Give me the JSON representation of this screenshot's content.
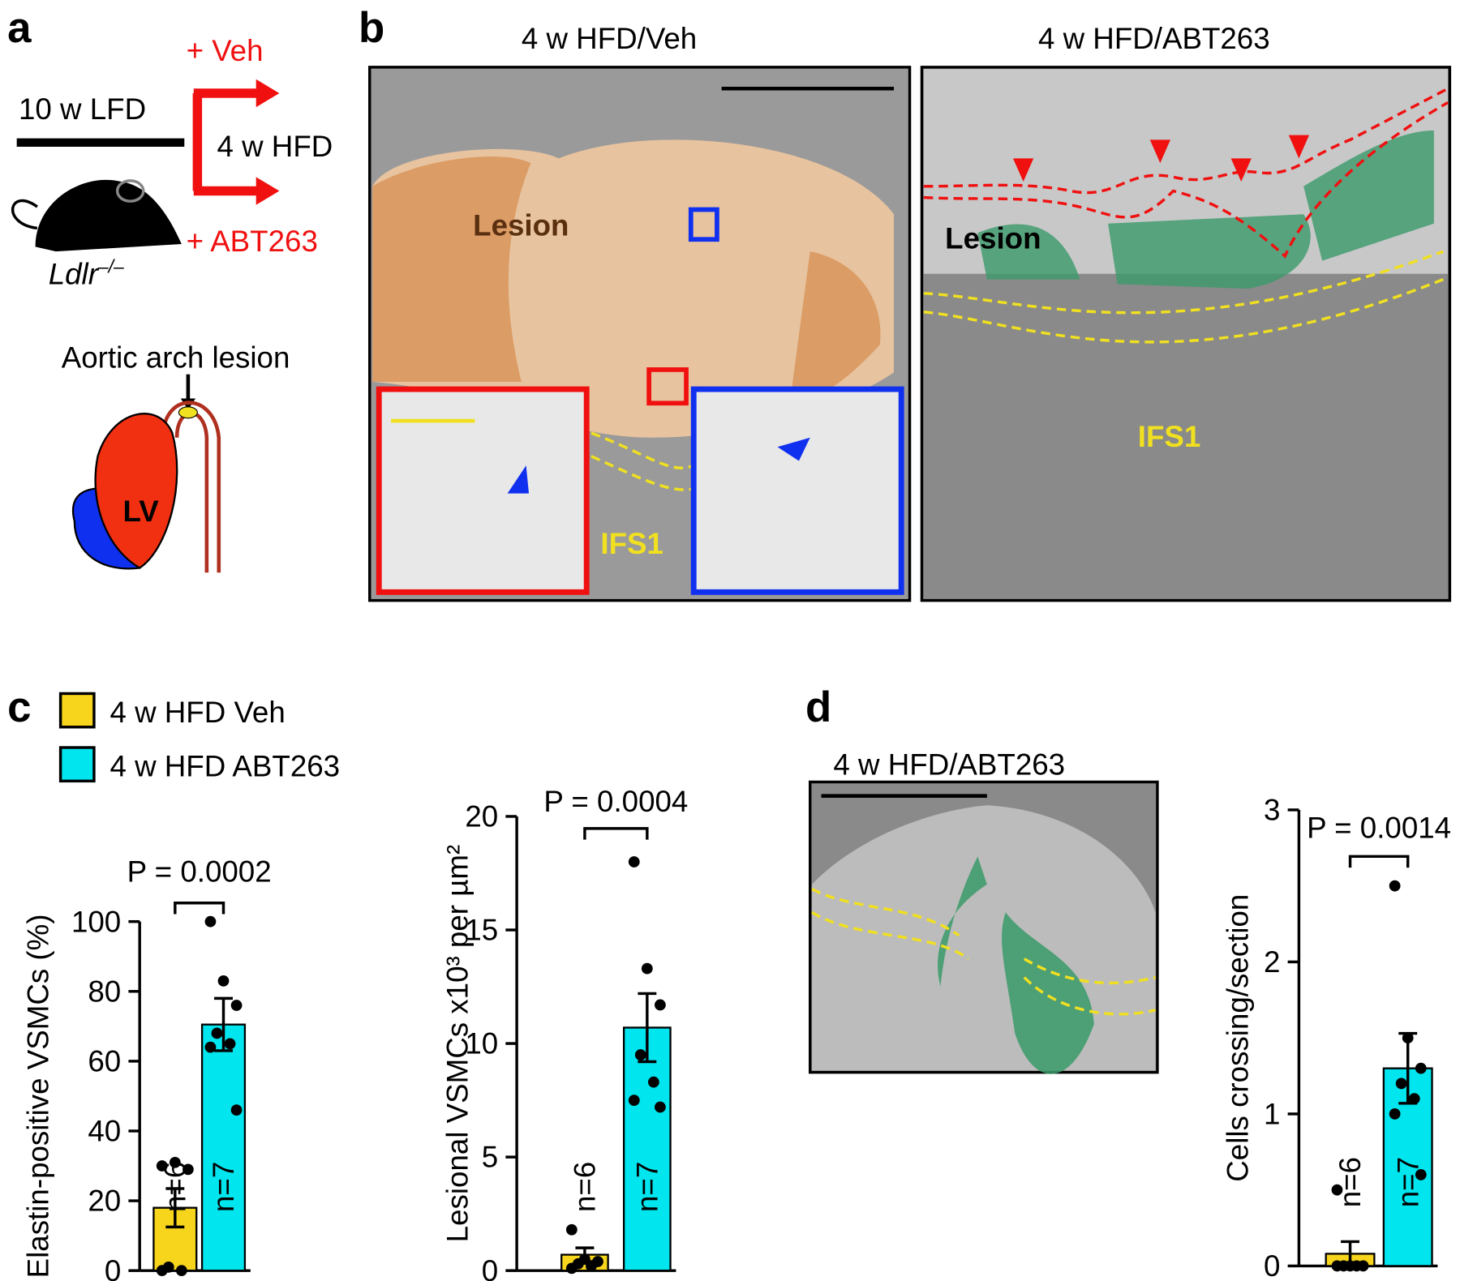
{
  "panel_labels": [
    "a",
    "b",
    "c",
    "d"
  ],
  "panel_a": {
    "veh": "+ Veh",
    "lfd": "10 w LFD",
    "hfd": "4 w HFD",
    "abt": "+ ABT263",
    "genotype": "Ldlr",
    "genotype_sup": "–/–",
    "lesion_site": "Aortic arch lesion",
    "heart": "LV"
  },
  "panel_b": {
    "left_title": "4 w HFD/Veh",
    "right_title": "4 w HFD/ABT263",
    "left_lesion": "Lesion",
    "right_lesion": "Lesion",
    "left_ifs": "IFS1",
    "right_ifs": "IFS1"
  },
  "panel_d": {
    "title": "4 w HFD/ABT263"
  },
  "legend": [
    {
      "name": "4 w HFD Veh",
      "color": "#f7d51d"
    },
    {
      "name": "4 w HFD ABT263",
      "color": "#00e5ee"
    }
  ],
  "chart_data": [
    {
      "type": "bar",
      "ylabel": "Elastin-positive VSMCs (%)",
      "ylim": [
        0,
        100
      ],
      "yticks": [
        0,
        20,
        40,
        60,
        80,
        100
      ],
      "values": [
        18,
        70.5
      ],
      "errors": [
        5.5,
        7.5
      ],
      "colors": [
        "#f7d51d",
        "#00e5ee"
      ],
      "points": [
        [
          30,
          31,
          29,
          1,
          0,
          0
        ],
        [
          100,
          83,
          76,
          68,
          65,
          64,
          46
        ]
      ],
      "n_labels": [
        "n=6",
        "n=7"
      ],
      "annotation": "P = 0.0002"
    },
    {
      "type": "bar",
      "ylabel": "Lesional VSMCs x10³ per µm²",
      "ylim": [
        0,
        20
      ],
      "yticks": [
        0,
        5,
        10,
        15,
        20
      ],
      "values": [
        0.7,
        10.7
      ],
      "errors": [
        0.3,
        1.5
      ],
      "colors": [
        "#f7d51d",
        "#00e5ee"
      ],
      "points": [
        [
          1.8,
          0.5,
          0.4,
          0.3,
          0.2,
          0.1
        ],
        [
          18,
          13.3,
          11.7,
          9.5,
          8.3,
          7.5,
          7.2
        ]
      ],
      "n_labels": [
        "n=6",
        "n=7"
      ],
      "annotation": "P = 0.0004"
    },
    {
      "type": "bar",
      "ylabel": "Cells crossing/section",
      "ylim": [
        0,
        3
      ],
      "yticks": [
        0,
        1,
        2,
        3
      ],
      "values": [
        0.08,
        1.3
      ],
      "errors": [
        0.08,
        0.23
      ],
      "colors": [
        "#f7d51d",
        "#00e5ee"
      ],
      "points": [
        [
          0.5,
          0,
          0,
          0,
          0,
          0
        ],
        [
          2.5,
          1.5,
          1.3,
          1.2,
          1.1,
          1.0,
          0.6
        ]
      ],
      "n_labels": [
        "n=6",
        "n=7"
      ],
      "annotation": "P = 0.0014"
    }
  ]
}
